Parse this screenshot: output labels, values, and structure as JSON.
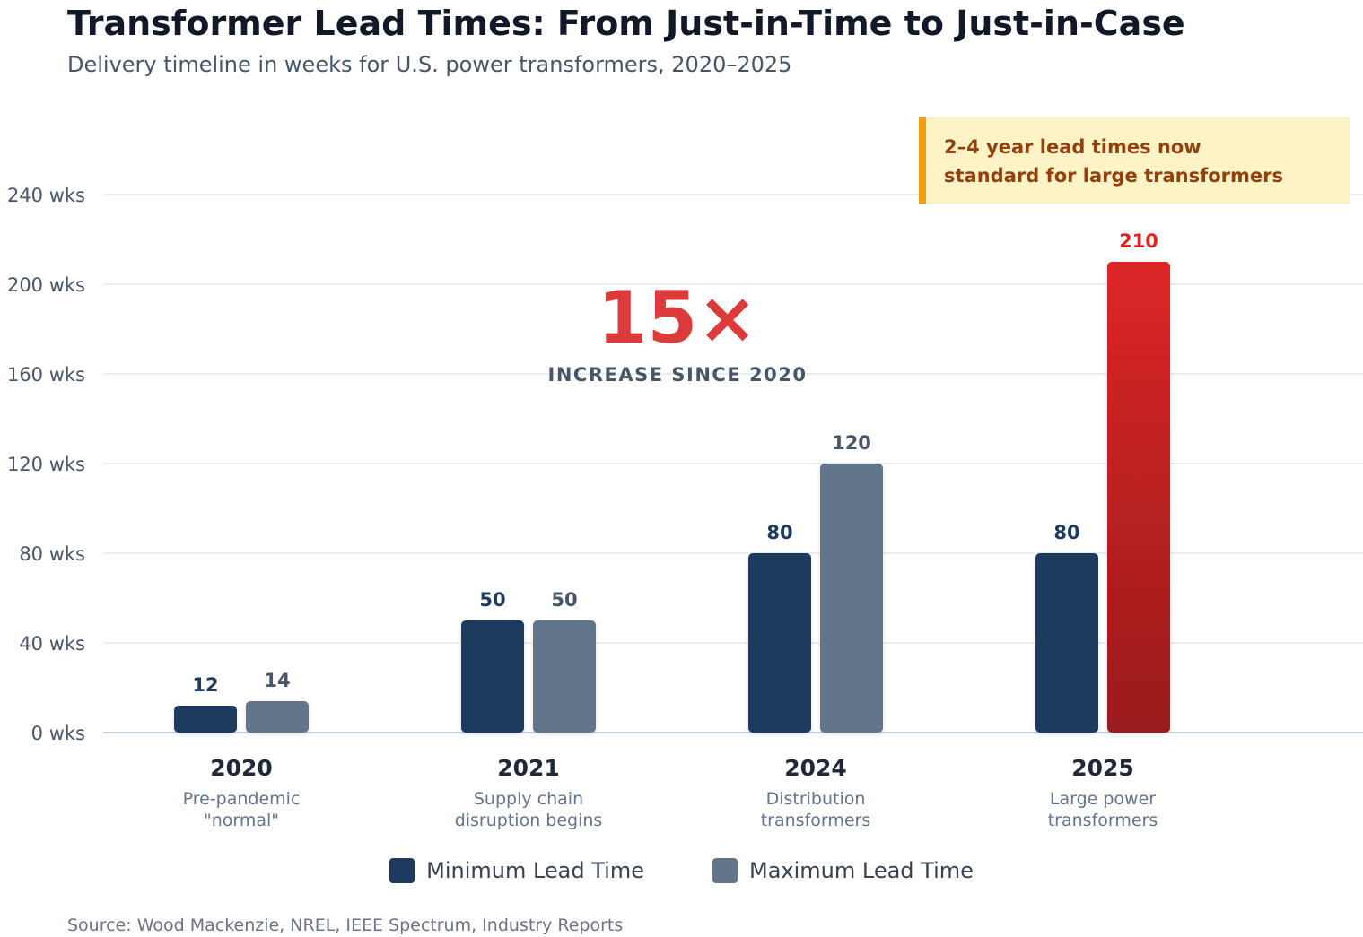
{
  "title": "Transformer Lead Times: From Just-in-Time to Just-in-Case",
  "subtitle": "Delivery timeline in weeks for U.S. power transformers, 2020–2025",
  "source": "Source: Wood Mackenzie, NREL, IEEE Spectrum, Industry Reports",
  "colors": {
    "min": "#1e3a5f",
    "max": "#64748b",
    "highlight_top": "#dc2626",
    "highlight_bottom": "#991b1b",
    "callout_bg": "#fef3c7",
    "callout_border": "#f59e0b",
    "callout_text": "#92400e",
    "big_stat": "#dc3b3b"
  },
  "legend": {
    "min_label": "Minimum Lead Time",
    "max_label": "Maximum Lead Time"
  },
  "callout": {
    "line1": "2–4 year lead times now",
    "line2": "standard for large transformers"
  },
  "big_stat": {
    "value": "15×",
    "caption": "INCREASE SINCE 2020"
  },
  "chart_data": {
    "type": "bar",
    "categories": [
      "2020",
      "2021",
      "2024",
      "2025"
    ],
    "category_subtitles": [
      [
        "Pre-pandemic",
        "\"normal\""
      ],
      [
        "Supply chain",
        "disruption begins"
      ],
      [
        "Distribution",
        "transformers"
      ],
      [
        "Large power",
        "transformers"
      ]
    ],
    "series": [
      {
        "name": "Minimum Lead Time",
        "values": [
          12,
          50,
          80,
          80
        ],
        "labels": [
          "12",
          "50",
          "80",
          "80"
        ]
      },
      {
        "name": "Maximum Lead Time",
        "values": [
          14,
          50,
          120,
          210
        ],
        "labels": [
          "14",
          "50",
          "120",
          "210"
        ]
      }
    ],
    "highlight": {
      "series": 1,
      "category": 3
    },
    "yticks": [
      0,
      40,
      80,
      120,
      160,
      200,
      240
    ],
    "ytick_labels": [
      "0 wks",
      "40 wks",
      "80 wks",
      "120 wks",
      "160 wks",
      "200 wks",
      "240 wks"
    ],
    "ylim": [
      0,
      240
    ],
    "grid": true,
    "legend_position": "bottom-center"
  }
}
